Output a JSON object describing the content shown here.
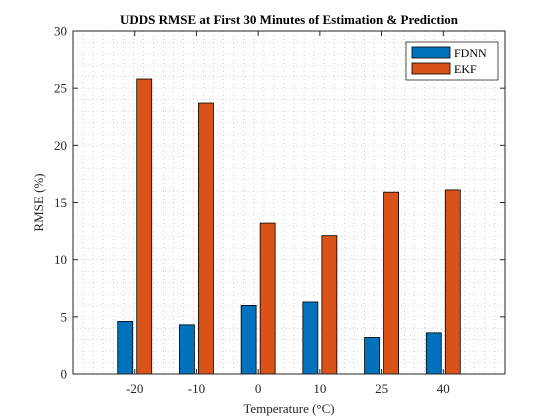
{
  "chart_data": {
    "type": "bar",
    "title": "UDDS RMSE at First 30 Minutes of Estimation & Prediction",
    "xlabel": "Temperature (°C)",
    "ylabel": "RMSE (%)",
    "x": [
      -20,
      -10,
      0,
      10,
      25,
      40
    ],
    "x_tick_labels": [
      "-20",
      "-10",
      "0",
      "10",
      "25",
      "40"
    ],
    "ylim": [
      0,
      30
    ],
    "y_ticks": [
      0,
      5,
      10,
      15,
      20,
      25,
      30
    ],
    "y_tick_labels": [
      "0",
      "5",
      "10",
      "15",
      "20",
      "25",
      "30"
    ],
    "grid": true,
    "legend_position": "top-right",
    "series": [
      {
        "name": "FDNN",
        "color": "#0072BD",
        "values": [
          4.6,
          4.3,
          6.0,
          6.3,
          3.2,
          3.6
        ]
      },
      {
        "name": "EKF",
        "color": "#D95319",
        "values": [
          25.8,
          23.7,
          13.2,
          12.1,
          15.9,
          16.1
        ]
      }
    ]
  }
}
